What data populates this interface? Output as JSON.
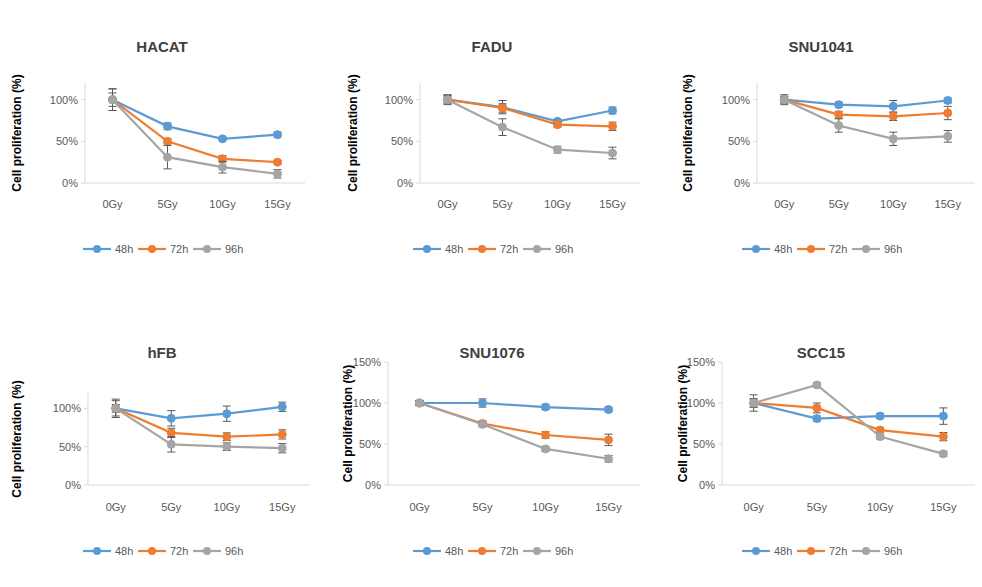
{
  "chart_data": [
    {
      "type": "line",
      "title": "HACAT",
      "y_label": "Cell proliferation (%)",
      "categories": [
        "0Gy",
        "5Gy",
        "10Gy",
        "15Gy"
      ],
      "ylim": [
        0,
        120
      ],
      "yticks": [
        {
          "value": 0,
          "label": "0%"
        },
        {
          "value": 50,
          "label": "50%"
        },
        {
          "value": 100,
          "label": "100%"
        }
      ],
      "grid": false,
      "legend": "bottom",
      "marker": "circle",
      "series": [
        {
          "name": "48h",
          "color": "#5b9bd5",
          "values": [
            100,
            68,
            53,
            58
          ],
          "errors": [
            13,
            4,
            2,
            3
          ]
        },
        {
          "name": "72h",
          "color": "#ed7d31",
          "values": [
            100,
            50,
            29,
            25
          ],
          "errors": [
            8,
            3,
            4,
            2
          ]
        },
        {
          "name": "96h",
          "color": "#a5a5a5",
          "values": [
            100,
            31,
            19,
            11
          ],
          "errors": [
            13,
            14,
            7,
            5
          ]
        }
      ]
    },
    {
      "type": "line",
      "title": "FADU",
      "y_label": "Cell proliferation (%)",
      "categories": [
        "0Gy",
        "5Gy",
        "10Gy",
        "15Gy"
      ],
      "ylim": [
        0,
        120
      ],
      "yticks": [
        {
          "value": 0,
          "label": "0%"
        },
        {
          "value": 50,
          "label": "50%"
        },
        {
          "value": 100,
          "label": "100%"
        }
      ],
      "grid": false,
      "legend": "bottom",
      "marker": "circle",
      "series": [
        {
          "name": "48h",
          "color": "#5b9bd5",
          "values": [
            100,
            91,
            74,
            87
          ],
          "errors": [
            5,
            8,
            2,
            4
          ]
        },
        {
          "name": "72h",
          "color": "#ed7d31",
          "values": [
            100,
            90,
            70,
            68
          ],
          "errors": [
            4,
            5,
            3,
            5
          ]
        },
        {
          "name": "96h",
          "color": "#a5a5a5",
          "values": [
            100,
            67,
            40,
            36
          ],
          "errors": [
            6,
            10,
            4,
            7
          ]
        }
      ]
    },
    {
      "type": "line",
      "title": "SNU1041",
      "y_label": "Cell proliferation (%)",
      "categories": [
        "0Gy",
        "5Gy",
        "10Gy",
        "15Gy"
      ],
      "ylim": [
        0,
        120
      ],
      "yticks": [
        {
          "value": 0,
          "label": "0%"
        },
        {
          "value": 50,
          "label": "50%"
        },
        {
          "value": 100,
          "label": "100%"
        }
      ],
      "grid": false,
      "legend": "bottom",
      "marker": "circle",
      "series": [
        {
          "name": "48h",
          "color": "#5b9bd5",
          "values": [
            100,
            94,
            92,
            99
          ],
          "errors": [
            4,
            3,
            7,
            3
          ]
        },
        {
          "name": "72h",
          "color": "#ed7d31",
          "values": [
            100,
            82,
            80,
            84
          ],
          "errors": [
            4,
            4,
            5,
            8
          ]
        },
        {
          "name": "96h",
          "color": "#a5a5a5",
          "values": [
            100,
            69,
            53,
            56
          ],
          "errors": [
            6,
            8,
            8,
            7
          ]
        }
      ]
    },
    {
      "type": "line",
      "title": "hFB",
      "y_label": "Cell proliferation (%)",
      "categories": [
        "0Gy",
        "5Gy",
        "10Gy",
        "15Gy"
      ],
      "ylim": [
        0,
        120
      ],
      "yticks": [
        {
          "value": 0,
          "label": "0%"
        },
        {
          "value": 50,
          "label": "50%"
        },
        {
          "value": 100,
          "label": "100%"
        }
      ],
      "grid": false,
      "legend": "bottom",
      "marker": "circle",
      "series": [
        {
          "name": "48h",
          "color": "#5b9bd5",
          "values": [
            100,
            87,
            93,
            102
          ],
          "errors": [
            12,
            10,
            10,
            6
          ]
        },
        {
          "name": "72h",
          "color": "#ed7d31",
          "values": [
            100,
            68,
            63,
            66
          ],
          "errors": [
            5,
            6,
            5,
            6
          ]
        },
        {
          "name": "96h",
          "color": "#a5a5a5",
          "values": [
            100,
            53,
            50,
            48
          ],
          "errors": [
            10,
            10,
            5,
            6
          ]
        }
      ]
    },
    {
      "type": "line",
      "title": "SNU1076",
      "y_label": "Cell proliferation (%)",
      "categories": [
        "0Gy",
        "5Gy",
        "10Gy",
        "15Gy"
      ],
      "ylim": [
        0,
        150
      ],
      "yticks": [
        {
          "value": 0,
          "label": "0%"
        },
        {
          "value": 50,
          "label": "50%"
        },
        {
          "value": 100,
          "label": "100%"
        },
        {
          "value": 150,
          "label": "150%"
        }
      ],
      "grid": false,
      "legend": "bottom",
      "marker": "circle",
      "series": [
        {
          "name": "48h",
          "color": "#5b9bd5",
          "values": [
            100,
            100,
            95,
            92
          ],
          "errors": [
            3,
            5,
            3,
            3
          ]
        },
        {
          "name": "72h",
          "color": "#ed7d31",
          "values": [
            100,
            75,
            61,
            55
          ],
          "errors": [
            3,
            3,
            4,
            7
          ]
        },
        {
          "name": "96h",
          "color": "#a5a5a5",
          "values": [
            100,
            74,
            44,
            32
          ],
          "errors": [
            3,
            3,
            3,
            4
          ]
        }
      ]
    },
    {
      "type": "line",
      "title": "SCC15",
      "y_label": "Cell proliferation (%)",
      "categories": [
        "0Gy",
        "5Gy",
        "10Gy",
        "15Gy"
      ],
      "ylim": [
        0,
        150
      ],
      "yticks": [
        {
          "value": 0,
          "label": "0%"
        },
        {
          "value": 50,
          "label": "50%"
        },
        {
          "value": 100,
          "label": "100%"
        },
        {
          "value": 150,
          "label": "150%"
        }
      ],
      "grid": false,
      "legend": "bottom",
      "marker": "circle",
      "series": [
        {
          "name": "48h",
          "color": "#5b9bd5",
          "values": [
            100,
            81,
            84,
            84
          ],
          "errors": [
            10,
            3,
            3,
            10
          ]
        },
        {
          "name": "72h",
          "color": "#ed7d31",
          "values": [
            100,
            94,
            67,
            59
          ],
          "errors": [
            5,
            6,
            3,
            5
          ]
        },
        {
          "name": "96h",
          "color": "#a5a5a5",
          "values": [
            100,
            122,
            59,
            38
          ],
          "errors": [
            5,
            3,
            3,
            3
          ]
        }
      ]
    }
  ]
}
